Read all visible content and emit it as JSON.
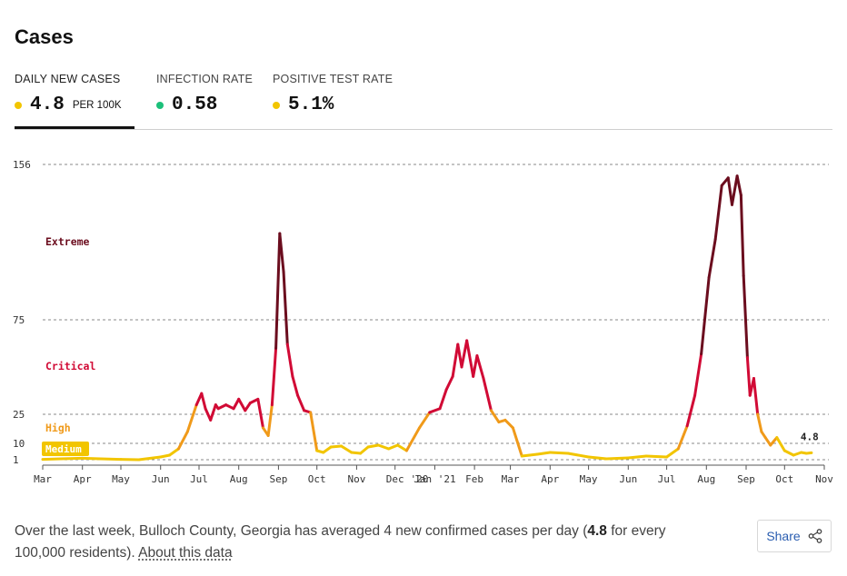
{
  "title": "Cases",
  "tabs": [
    {
      "label": "DAILY NEW CASES",
      "value": "4.8",
      "unit": "PER 100K",
      "dot_color": "#f2c500"
    },
    {
      "label": "INFECTION RATE",
      "value": "0.58",
      "dot_color": "#1cc07a"
    },
    {
      "label": "POSITIVE TEST RATE",
      "value": "5.1%",
      "dot_color": "#f2c500"
    }
  ],
  "footer": {
    "text_before": "Over the last week, Bulloch County, Georgia has averaged 4 new confirmed cases per day (",
    "bold_value": "4.8",
    "text_after": " for every 100,000 residents).",
    "link": "About this data",
    "share_label": "Share"
  },
  "chart_data": {
    "type": "line",
    "x_ticks": [
      "Mar",
      "Apr",
      "May",
      "Jun",
      "Jul",
      "Aug",
      "Sep",
      "Oct",
      "Nov",
      "Dec",
      "'20",
      "Jan '21",
      "Feb",
      "Mar",
      "Apr",
      "May",
      "Jun",
      "Jul",
      "Aug",
      "Sep",
      "Oct",
      "Nov"
    ],
    "y_ticks": [
      1,
      10,
      25,
      75,
      156
    ],
    "y_scale": "piecewise-linear by risk level",
    "ylim": [
      0,
      156
    ],
    "grid": "dashed lines at y ticks",
    "zones": [
      {
        "name": "Medium",
        "from": 1,
        "to": 10,
        "color": "#f2c500"
      },
      {
        "name": "High",
        "from": 10,
        "to": 25,
        "color": "#f09a1a"
      },
      {
        "name": "Critical",
        "from": 25,
        "to": 75,
        "color": "#d10a35"
      },
      {
        "name": "Extreme",
        "from": 75,
        "to": 156,
        "color": "#6b0d1e"
      }
    ],
    "latest_label": "4.8",
    "series": [
      {
        "dates": [
          "2020-03-01",
          "2020-03-15",
          "2020-04-01",
          "2020-04-15",
          "2020-05-01",
          "2020-05-15",
          "2020-06-01",
          "2020-06-08",
          "2020-06-15",
          "2020-06-22",
          "2020-06-29",
          "2020-07-03",
          "2020-07-06",
          "2020-07-10",
          "2020-07-14",
          "2020-07-16",
          "2020-07-22",
          "2020-07-28",
          "2020-08-01",
          "2020-08-06",
          "2020-08-10",
          "2020-08-16",
          "2020-08-20",
          "2020-08-24",
          "2020-08-27",
          "2020-08-30",
          "2020-09-02",
          "2020-09-05",
          "2020-09-08",
          "2020-09-12",
          "2020-09-16",
          "2020-09-21",
          "2020-09-26",
          "2020-10-01",
          "2020-10-06",
          "2020-10-12",
          "2020-10-20",
          "2020-10-28",
          "2020-11-04",
          "2020-11-10",
          "2020-11-18",
          "2020-11-26",
          "2020-12-03",
          "2020-12-10",
          "2020-12-20",
          "2020-12-28",
          "2021-01-05",
          "2021-01-10",
          "2021-01-15",
          "2021-01-19",
          "2021-01-22",
          "2021-01-26",
          "2021-01-31",
          "2021-02-03",
          "2021-02-08",
          "2021-02-14",
          "2021-02-20",
          "2021-02-25",
          "2021-03-03",
          "2021-03-10",
          "2021-03-16",
          "2021-03-22",
          "2021-04-01",
          "2021-04-15",
          "2021-05-01",
          "2021-05-15",
          "2021-06-01",
          "2021-06-15",
          "2021-07-01",
          "2021-07-10",
          "2021-07-17",
          "2021-07-23",
          "2021-07-28",
          "2021-08-03",
          "2021-08-08",
          "2021-08-13",
          "2021-08-18",
          "2021-08-21",
          "2021-08-25",
          "2021-08-28",
          "2021-08-30",
          "2021-09-02",
          "2021-09-04",
          "2021-09-07",
          "2021-09-10",
          "2021-09-13",
          "2021-09-16",
          "2021-09-20",
          "2021-09-25",
          "2021-10-01",
          "2021-10-08",
          "2021-10-14",
          "2021-10-18",
          "2021-10-22"
        ],
        "values": [
          1.2,
          1.5,
          1.8,
          1.5,
          1.2,
          1.0,
          2.5,
          3.5,
          7.0,
          16.0,
          30.0,
          36.0,
          28.0,
          22.0,
          30.0,
          28.0,
          30.0,
          28.0,
          33.0,
          27.0,
          31.0,
          33.0,
          18.0,
          14.0,
          30.0,
          60.0,
          120.0,
          100.0,
          62.0,
          45.0,
          35.0,
          27.0,
          26.0,
          6.0,
          5.0,
          8.0,
          8.5,
          5.0,
          4.5,
          8.0,
          9.0,
          7.0,
          9.0,
          6.0,
          18.0,
          26.0,
          28.0,
          38.0,
          45.0,
          62.0,
          50.0,
          64.0,
          45.0,
          56.0,
          44.0,
          27.0,
          21.0,
          22.0,
          18.0,
          3.0,
          3.5,
          4.0,
          5.0,
          4.5,
          2.5,
          1.5,
          2.0,
          3.0,
          2.5,
          7.0,
          19.0,
          35.0,
          57.0,
          97.0,
          117.0,
          145.0,
          149.0,
          135.0,
          150.0,
          140.0,
          98.0,
          55.0,
          35.0,
          44.0,
          25.0,
          16.0,
          13.0,
          9.0,
          13.0,
          6.0,
          3.5,
          5.0,
          4.5,
          4.8
        ]
      }
    ]
  }
}
